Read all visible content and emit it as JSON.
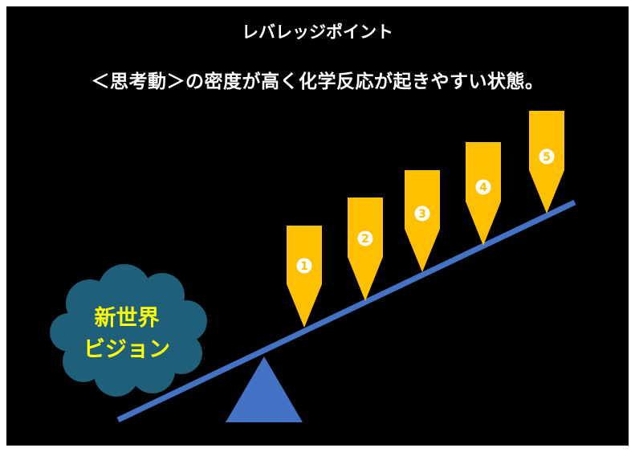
{
  "header": {
    "title": "レバレッジポイント",
    "subtitle": "＜思考動＞の密度が高く化学反応が起きやすい状態。"
  },
  "cloud": {
    "line1": "新世界",
    "line2": "ビジョン"
  },
  "arrows": [
    {
      "label": "1"
    },
    {
      "label": "2"
    },
    {
      "label": "3"
    },
    {
      "label": "4"
    },
    {
      "label": "5"
    }
  ],
  "colors": {
    "background": "#000000",
    "arrow": "#FFC000",
    "lever": "#4472C4",
    "fulcrum": "#4472C4",
    "cloud": "#1F5F7A",
    "cloud_text": "#FFFF00"
  },
  "icons": [
    "lever-bar",
    "fulcrum-triangle",
    "cloud-shape",
    "down-arrow"
  ]
}
